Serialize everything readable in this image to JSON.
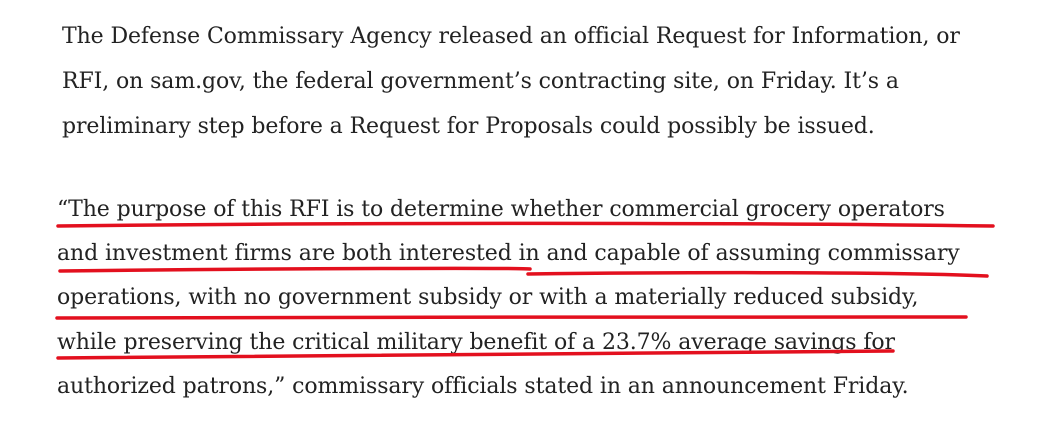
{
  "article": {
    "paragraph1": {
      "lines": [
        "The Defense Commissary Agency released an official Request for Information, or",
        "RFI, on sam.gov, the federal government’s contracting site, on Friday. It’s a",
        "preliminary step before a Request for Proposals could possibly be issued."
      ]
    },
    "paragraph2": {
      "lines": [
        "“The purpose of this RFI is to determine whether commercial grocery operators",
        "and investment firms are both interested in and capable of assuming commissary",
        "operations, with no government subsidy or with a materially reduced subsidy,",
        "while preserving the critical military benefit of a 23.7% average savings for",
        "authorized patrons,” commissary officials stated in an announcement Friday."
      ]
    }
  },
  "annotation": {
    "color": "#e3101e"
  }
}
